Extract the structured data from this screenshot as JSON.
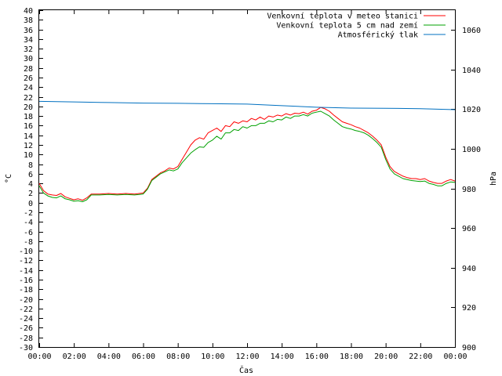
{
  "chart_data": {
    "type": "line",
    "title": "",
    "xlabel": "Čas",
    "ylabel": "°C",
    "y2label": "hPa",
    "ylim": [
      -30,
      40
    ],
    "y2lim": [
      900,
      1070
    ],
    "xlim": [
      "00:00",
      "24:00"
    ],
    "x_ticks": [
      "00:00",
      "02:00",
      "04:00",
      "06:00",
      "08:00",
      "10:00",
      "12:00",
      "14:00",
      "16:00",
      "18:00",
      "20:00",
      "22:00",
      "00:00"
    ],
    "y_ticks": [
      -30,
      -28,
      -26,
      -24,
      -22,
      -20,
      -18,
      -16,
      -14,
      -12,
      -10,
      -8,
      -6,
      -4,
      -2,
      0,
      2,
      4,
      6,
      8,
      10,
      12,
      14,
      16,
      18,
      20,
      22,
      24,
      26,
      28,
      30,
      32,
      34,
      36,
      38,
      40
    ],
    "y2_ticks": [
      900,
      920,
      940,
      960,
      980,
      1000,
      1020,
      1040,
      1060
    ],
    "legend_position": "top-right",
    "grid": false,
    "series": [
      {
        "name": "Venkovní teplota v meteo stanici",
        "axis": "left",
        "color": "#ff0000",
        "x": [
          0,
          0.25,
          0.5,
          0.75,
          1.0,
          1.25,
          1.5,
          1.75,
          2.0,
          2.25,
          2.5,
          2.75,
          3.0,
          3.5,
          4.0,
          4.5,
          5.0,
          5.5,
          6.0,
          6.25,
          6.5,
          6.75,
          7.0,
          7.25,
          7.5,
          7.75,
          8.0,
          8.25,
          8.5,
          8.75,
          9.0,
          9.25,
          9.5,
          9.75,
          10.0,
          10.25,
          10.5,
          10.75,
          11.0,
          11.25,
          11.5,
          11.75,
          12.0,
          12.25,
          12.5,
          12.75,
          13.0,
          13.25,
          13.5,
          13.75,
          14.0,
          14.25,
          14.5,
          14.75,
          15.0,
          15.25,
          15.5,
          15.75,
          16.0,
          16.25,
          16.5,
          16.75,
          17.0,
          17.25,
          17.5,
          17.75,
          18.0,
          18.25,
          18.5,
          18.75,
          19.0,
          19.25,
          19.5,
          19.75,
          20.0,
          20.25,
          20.5,
          20.75,
          21.0,
          21.25,
          21.5,
          21.75,
          22.0,
          22.25,
          22.5,
          22.75,
          23.0,
          23.25,
          23.5,
          23.75,
          24.0
        ],
        "values": [
          4.0,
          2.5,
          1.8,
          1.6,
          1.5,
          1.9,
          1.2,
          0.9,
          0.6,
          0.8,
          0.5,
          1.0,
          1.8,
          1.8,
          1.9,
          1.8,
          1.9,
          1.8,
          2.0,
          3.0,
          4.8,
          5.5,
          6.2,
          6.6,
          7.2,
          7.0,
          7.5,
          9.0,
          10.5,
          12.0,
          13.0,
          13.5,
          13.2,
          14.5,
          15.0,
          15.5,
          14.8,
          16.0,
          15.8,
          16.8,
          16.5,
          17.0,
          16.8,
          17.5,
          17.2,
          17.8,
          17.3,
          18.0,
          17.8,
          18.2,
          18.0,
          18.5,
          18.2,
          18.6,
          18.5,
          18.8,
          18.4,
          19.0,
          19.2,
          19.8,
          19.5,
          19.0,
          18.2,
          17.5,
          16.8,
          16.5,
          16.2,
          15.8,
          15.5,
          15.0,
          14.5,
          13.8,
          13.0,
          12.0,
          9.5,
          7.5,
          6.5,
          6.0,
          5.5,
          5.2,
          5.0,
          5.0,
          4.8,
          5.0,
          4.5,
          4.2,
          4.0,
          4.0,
          4.5,
          4.8,
          4.5
        ]
      },
      {
        "name": "Venkovní teplota 5 cm nad zemí",
        "axis": "left",
        "color": "#00a000",
        "x": [
          0,
          0.25,
          0.5,
          0.75,
          1.0,
          1.25,
          1.5,
          1.75,
          2.0,
          2.25,
          2.5,
          2.75,
          3.0,
          3.5,
          4.0,
          4.5,
          5.0,
          5.5,
          6.0,
          6.25,
          6.5,
          6.75,
          7.0,
          7.25,
          7.5,
          7.75,
          8.0,
          8.25,
          8.5,
          8.75,
          9.0,
          9.25,
          9.5,
          9.75,
          10.0,
          10.25,
          10.5,
          10.75,
          11.0,
          11.25,
          11.5,
          11.75,
          12.0,
          12.25,
          12.5,
          12.75,
          13.0,
          13.25,
          13.5,
          13.75,
          14.0,
          14.25,
          14.5,
          14.75,
          15.0,
          15.25,
          15.5,
          15.75,
          16.0,
          16.25,
          16.5,
          16.75,
          17.0,
          17.25,
          17.5,
          17.75,
          18.0,
          18.25,
          18.5,
          18.75,
          19.0,
          19.25,
          19.5,
          19.75,
          20.0,
          20.25,
          20.5,
          20.75,
          21.0,
          21.25,
          21.5,
          21.75,
          22.0,
          22.25,
          22.5,
          22.75,
          23.0,
          23.25,
          23.5,
          23.75,
          24.0
        ],
        "values": [
          3.5,
          2.0,
          1.4,
          1.1,
          1.0,
          1.4,
          0.8,
          0.6,
          0.3,
          0.4,
          0.2,
          0.6,
          1.6,
          1.6,
          1.7,
          1.6,
          1.7,
          1.6,
          1.8,
          2.8,
          4.6,
          5.3,
          6.0,
          6.4,
          6.8,
          6.6,
          7.0,
          8.3,
          9.3,
          10.3,
          11.0,
          11.6,
          11.5,
          12.5,
          13.0,
          13.8,
          13.2,
          14.5,
          14.5,
          15.2,
          15.0,
          15.8,
          15.5,
          16.0,
          16.0,
          16.5,
          16.5,
          17.0,
          16.8,
          17.3,
          17.2,
          17.8,
          17.5,
          18.0,
          18.0,
          18.3,
          18.0,
          18.6,
          18.8,
          19.0,
          18.5,
          18.0,
          17.2,
          16.5,
          15.8,
          15.5,
          15.3,
          15.0,
          14.8,
          14.5,
          14.0,
          13.3,
          12.5,
          11.5,
          9.0,
          7.0,
          6.0,
          5.5,
          5.0,
          4.8,
          4.6,
          4.5,
          4.4,
          4.5,
          4.0,
          3.8,
          3.5,
          3.5,
          4.0,
          4.3,
          4.2
        ]
      },
      {
        "name": "Atmosférický tlak",
        "axis": "right",
        "color": "#0070c0",
        "x": [
          0,
          2,
          4,
          6,
          8,
          10,
          12,
          14,
          16,
          18,
          20,
          22,
          24
        ],
        "values": [
          1024.0,
          1023.7,
          1023.4,
          1023.1,
          1023.0,
          1022.8,
          1022.6,
          1021.8,
          1021.0,
          1020.6,
          1020.5,
          1020.3,
          1019.8
        ]
      }
    ]
  }
}
